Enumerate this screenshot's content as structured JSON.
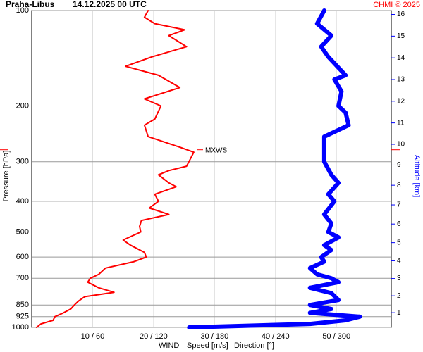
{
  "chart_data": {
    "type": "line",
    "title": "Praha-Libus",
    "subtitle": "14.12.2025 00 UTC",
    "source": "CHMI © 2025",
    "xlabel": "WIND",
    "ylabel": "Pressure [hPa]",
    "y2label": "Altitude [km]",
    "xlim": [
      0,
      59
    ],
    "x2lim": [
      0,
      354
    ],
    "xticks": [
      {
        "value": 10,
        "label": "10 / 60"
      },
      {
        "value": 20,
        "label": "20 / 120"
      },
      {
        "value": 30,
        "label": "30 / 180"
      },
      {
        "value": 40,
        "label": "40 / 240"
      },
      {
        "value": 50,
        "label": "50 / 300"
      }
    ],
    "ylim": [
      1000,
      100
    ],
    "yscale": "log",
    "yticks": [
      100,
      200,
      300,
      400,
      500,
      600,
      700,
      850,
      925,
      1000
    ],
    "y2ticks": [
      1,
      2,
      3,
      4,
      5,
      6,
      7,
      8,
      9,
      10,
      11,
      12,
      13,
      14,
      15,
      16
    ],
    "y2color": "#0000ff",
    "grid": true,
    "annotations": [
      {
        "text": "MXWS",
        "y": 275,
        "color": "#ff0000"
      }
    ],
    "series": [
      {
        "name": "Speed [m/s]",
        "color": "#ff0000",
        "y": [
          1000,
          975,
          950,
          925,
          900,
          875,
          850,
          825,
          800,
          775,
          750,
          720,
          700,
          680,
          650,
          620,
          600,
          580,
          550,
          530,
          500,
          480,
          460,
          440,
          420,
          400,
          380,
          360,
          350,
          330,
          320,
          310,
          300,
          280,
          270,
          250,
          230,
          220,
          200,
          190,
          175,
          160,
          150,
          140,
          130,
          120,
          115,
          110,
          105,
          100
        ],
        "values": [
          0.8,
          1.5,
          3.5,
          3.8,
          5.2,
          6.4,
          7,
          7.7,
          8.7,
          13.5,
          11,
          9.2,
          9.6,
          11,
          12.1,
          16.8,
          18.8,
          18.5,
          16.2,
          15,
          17.9,
          17.7,
          18,
          22.5,
          19.3,
          20.8,
          20.2,
          23.7,
          22.5,
          20.8,
          22.5,
          25.4,
          25.8,
          26.6,
          24.3,
          19.1,
          18.5,
          20.2,
          21.2,
          18.5,
          24.3,
          20.8,
          15.4,
          19.7,
          25.4,
          22.5,
          25.1,
          20.2,
          18.5,
          19.1
        ]
      },
      {
        "name": "Direction [°]",
        "color": "#0000ff",
        "axis": "x2",
        "y": [
          1000,
          975,
          950,
          925,
          900,
          875,
          850,
          820,
          780,
          750,
          720,
          700,
          680,
          650,
          620,
          600,
          570,
          550,
          520,
          500,
          470,
          440,
          400,
          380,
          350,
          330,
          300,
          280,
          250,
          230,
          210,
          200,
          180,
          165,
          160,
          140,
          130,
          120,
          110,
          100
        ],
        "values": [
          155,
          274,
          309,
          323,
          274,
          295,
          274,
          302,
          295,
          274,
          302,
          295,
          281,
          274,
          288,
          285,
          295,
          288,
          302,
          292,
          295,
          288,
          298,
          292,
          302,
          295,
          288,
          288,
          288,
          312,
          309,
          302,
          305,
          298,
          309,
          292,
          285,
          295,
          281,
          288
        ]
      }
    ]
  }
}
